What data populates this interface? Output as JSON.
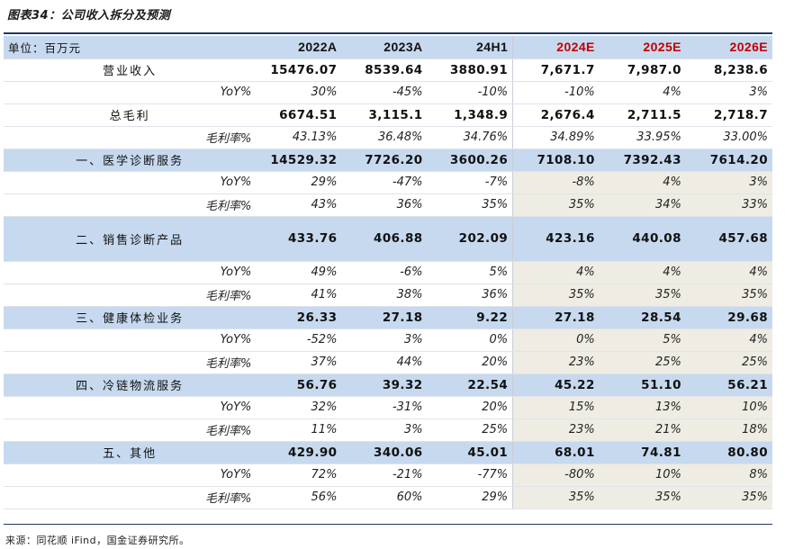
{
  "figure_title": "图表34：公司收入拆分及预测",
  "header": {
    "unit": "单位：百万元",
    "columns": [
      "2022A",
      "2023A",
      "24H1",
      "2024E",
      "2025E",
      "2026E"
    ]
  },
  "rows": [
    {
      "type": "bold",
      "label": "营业收入",
      "values": [
        "15476.07",
        "8539.64",
        "3880.91",
        "7,671.7",
        "7,987.0",
        "8,238.6"
      ]
    },
    {
      "type": "plain-sub",
      "label": "YoY%",
      "values": [
        "30%",
        "-45%",
        "-10%",
        "-10%",
        "4%",
        "3%"
      ]
    },
    {
      "type": "bold",
      "label": "总毛利",
      "values": [
        "6674.51",
        "3,115.1",
        "1,348.9",
        "2,676.4",
        "2,711.5",
        "2,718.7"
      ]
    },
    {
      "type": "plain-sub",
      "label": "毛利率%",
      "values": [
        "43.13%",
        "36.48%",
        "34.76%",
        "34.89%",
        "33.95%",
        "33.00%"
      ]
    },
    {
      "type": "segment",
      "label": "一、医学诊断服务",
      "values": [
        "14529.32",
        "7726.20",
        "3600.26",
        "7108.10",
        "7392.43",
        "7614.20"
      ]
    },
    {
      "type": "sub",
      "label": "YoY%",
      "values": [
        "29%",
        "-47%",
        "-7%",
        "-8%",
        "4%",
        "3%"
      ]
    },
    {
      "type": "sub",
      "label": "毛利率%",
      "values": [
        "43%",
        "36%",
        "35%",
        "35%",
        "34%",
        "33%"
      ]
    },
    {
      "type": "segment-tall",
      "label": "二、销售诊断产品",
      "values": [
        "433.76",
        "406.88",
        "202.09",
        "423.16",
        "440.08",
        "457.68"
      ]
    },
    {
      "type": "sub",
      "label": "YoY%",
      "values": [
        "49%",
        "-6%",
        "5%",
        "4%",
        "4%",
        "4%"
      ]
    },
    {
      "type": "sub",
      "label": "毛利率%",
      "values": [
        "41%",
        "38%",
        "36%",
        "35%",
        "35%",
        "35%"
      ]
    },
    {
      "type": "segment",
      "label": "三、健康体检业务",
      "values": [
        "26.33",
        "27.18",
        "9.22",
        "27.18",
        "28.54",
        "29.68"
      ]
    },
    {
      "type": "sub",
      "label": "YoY%",
      "values": [
        "-52%",
        "3%",
        "0%",
        "0%",
        "5%",
        "4%"
      ]
    },
    {
      "type": "sub",
      "label": "毛利率%",
      "values": [
        "37%",
        "44%",
        "20%",
        "23%",
        "25%",
        "25%"
      ]
    },
    {
      "type": "segment",
      "label": "四、冷链物流服务",
      "values": [
        "56.76",
        "39.32",
        "22.54",
        "45.22",
        "51.10",
        "56.21"
      ]
    },
    {
      "type": "sub",
      "label": "YoY%",
      "values": [
        "32%",
        "-31%",
        "20%",
        "15%",
        "13%",
        "10%"
      ]
    },
    {
      "type": "sub",
      "label": "毛利率%",
      "values": [
        "11%",
        "3%",
        "25%",
        "23%",
        "21%",
        "18%"
      ]
    },
    {
      "type": "segment",
      "label": "五、其他",
      "values": [
        "429.90",
        "340.06",
        "45.01",
        "68.01",
        "74.81",
        "80.80"
      ]
    },
    {
      "type": "sub",
      "label": "YoY%",
      "values": [
        "72%",
        "-21%",
        "-77%",
        "-80%",
        "10%",
        "8%"
      ]
    },
    {
      "type": "sub",
      "label": "毛利率%",
      "values": [
        "56%",
        "60%",
        "29%",
        "35%",
        "35%",
        "35%"
      ]
    }
  ],
  "footer": "来源：同花顺 iFind，国金证券研究所。",
  "colors": {
    "header_fill": "#c6d9ef",
    "estimate_text": "#c00000",
    "estimate_shade": "#efece3",
    "rule": "#1f3864"
  }
}
